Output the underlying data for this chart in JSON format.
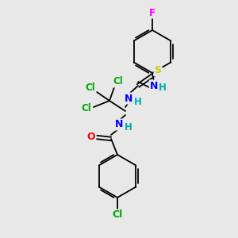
{
  "background_color": "#e8e8e8",
  "atom_colors": {
    "C": "#000000",
    "N": "#0000ff",
    "O": "#ff0000",
    "S": "#cccc00",
    "Cl": "#00aa00",
    "F": "#ff00ff",
    "H": "#00aaaa"
  },
  "figsize": [
    3.0,
    3.0
  ],
  "dpi": 100
}
